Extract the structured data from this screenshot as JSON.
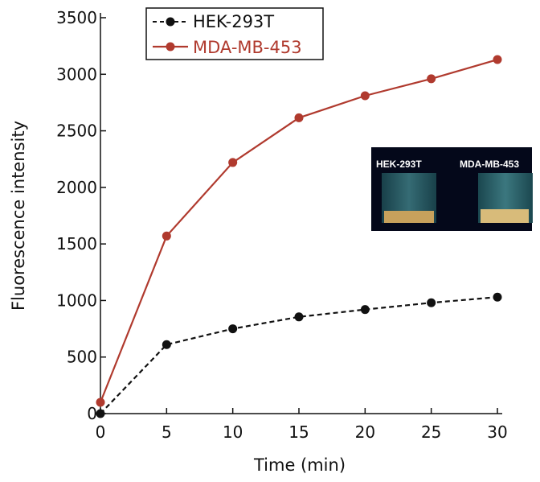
{
  "chart_data": {
    "type": "line",
    "title": "",
    "xlabel": "Time (min)",
    "ylabel": "Fluorescence intensity",
    "x": [
      0,
      5,
      10,
      15,
      20,
      25,
      30
    ],
    "xticks": [
      0,
      5,
      10,
      15,
      20,
      25,
      30
    ],
    "yticks": [
      0,
      500,
      1000,
      1500,
      2000,
      2500,
      3000,
      3500
    ],
    "xlim": [
      0,
      30
    ],
    "ylim": [
      0,
      3500
    ],
    "grid": false,
    "legend_position": "top-left",
    "series": [
      {
        "name": "HEK-293T",
        "values": [
          0,
          610,
          750,
          855,
          920,
          980,
          1030
        ],
        "color": "#111111",
        "line_style": "dashed",
        "marker": "circle"
      },
      {
        "name": "MDA-MB-453",
        "values": [
          100,
          1570,
          2220,
          2615,
          2810,
          2960,
          3130
        ],
        "color": "#b03a2e",
        "line_style": "solid",
        "marker": "circle"
      }
    ],
    "inset": {
      "description_labels": [
        "HEK-293T",
        "MDA-MB-453"
      ]
    }
  }
}
